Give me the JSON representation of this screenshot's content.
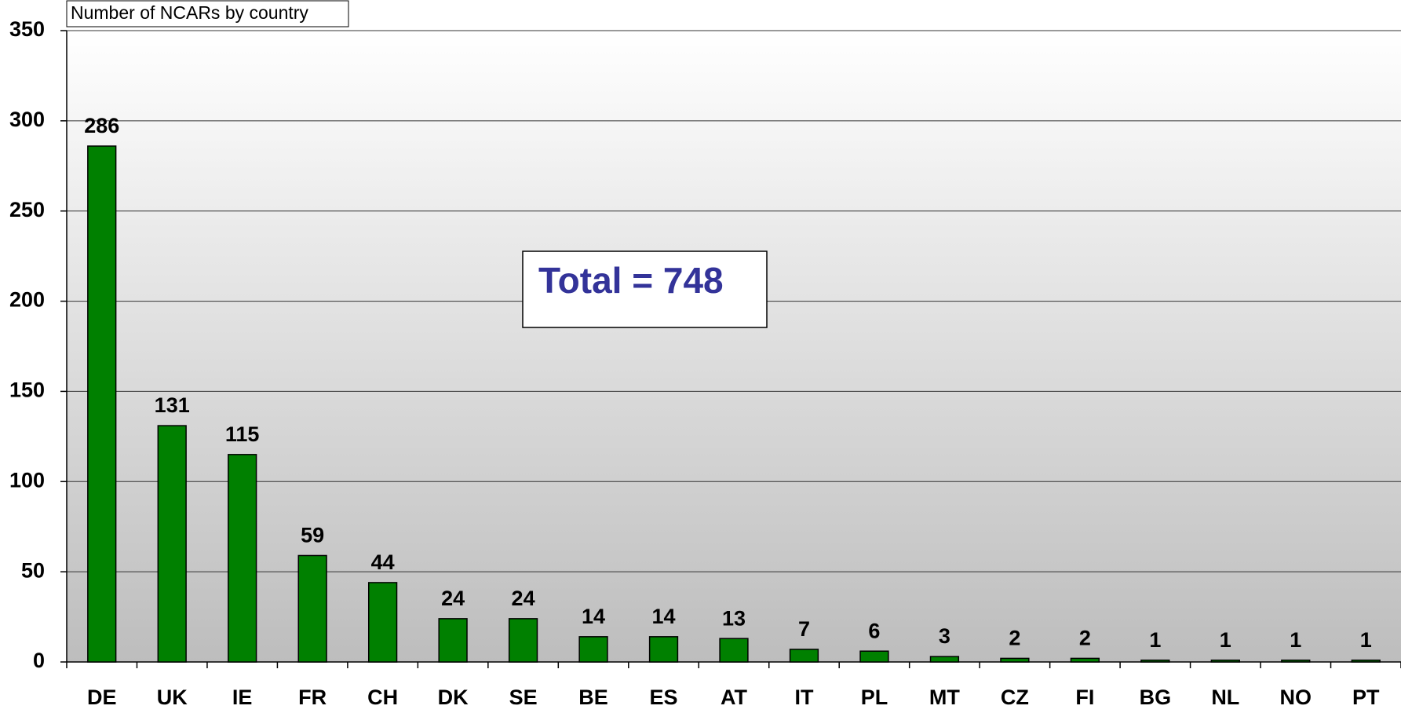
{
  "chart_data": {
    "type": "bar",
    "title": "Number of NCARs by country",
    "annotation": "Total = 748",
    "categories": [
      "DE",
      "UK",
      "IE",
      "FR",
      "CH",
      "DK",
      "SE",
      "BE",
      "ES",
      "AT",
      "IT",
      "PL",
      "MT",
      "CZ",
      "FI",
      "BG",
      "NL",
      "NO",
      "PT"
    ],
    "values": [
      286,
      131,
      115,
      59,
      44,
      24,
      24,
      14,
      14,
      13,
      7,
      6,
      3,
      2,
      2,
      1,
      1,
      1,
      1
    ],
    "color": "#008000",
    "ylim": [
      0,
      350
    ],
    "yticks": [
      0,
      50,
      100,
      150,
      200,
      250,
      300,
      350
    ],
    "grid": true
  }
}
